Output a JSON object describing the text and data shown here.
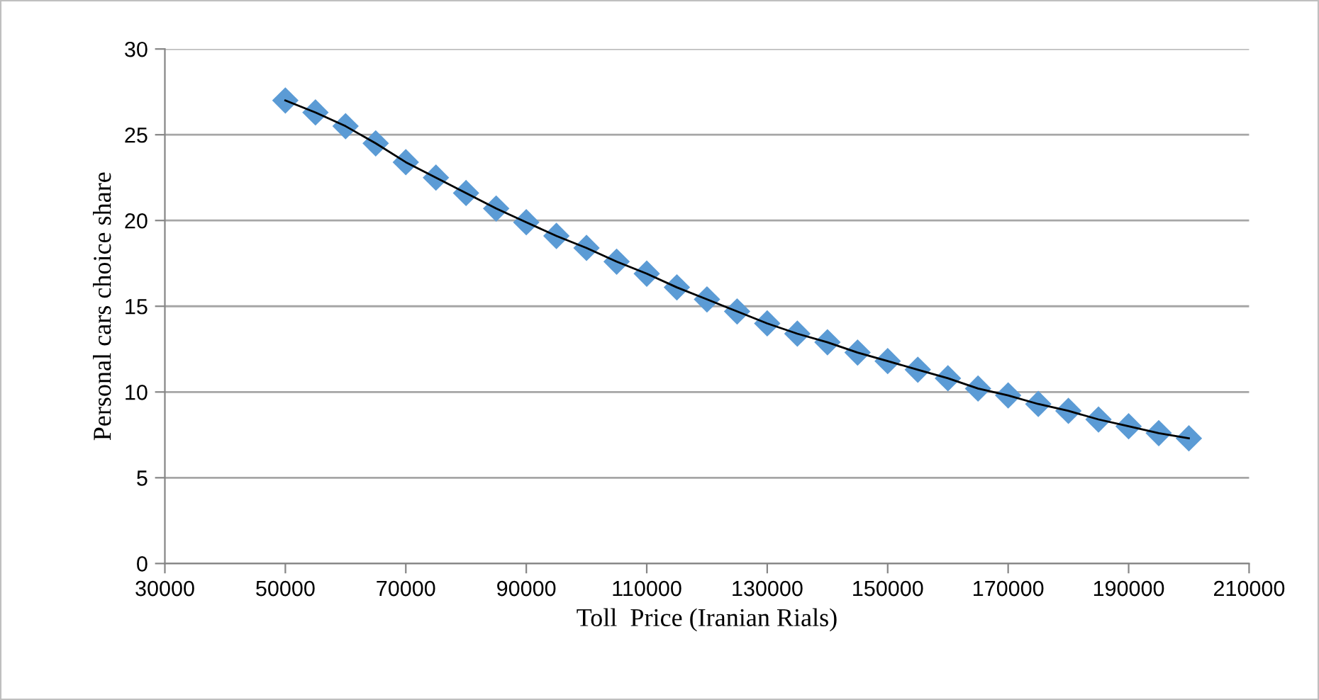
{
  "chart_data": {
    "type": "scatter",
    "xlabel": "Toll  Price (Iranian Rials)",
    "ylabel": "Personal cars choice share",
    "x": [
      50000,
      55000,
      60000,
      65000,
      70000,
      75000,
      80000,
      85000,
      90000,
      95000,
      100000,
      105000,
      110000,
      115000,
      120000,
      125000,
      130000,
      135000,
      140000,
      145000,
      150000,
      155000,
      160000,
      165000,
      170000,
      175000,
      180000,
      185000,
      190000,
      195000,
      200000
    ],
    "series": [
      {
        "color": "#5b9bd5",
        "marker": "diamond",
        "values": [
          27.0,
          26.3,
          25.5,
          24.5,
          23.4,
          22.5,
          21.6,
          20.7,
          19.9,
          19.1,
          18.4,
          17.6,
          16.9,
          16.1,
          15.4,
          14.7,
          14.0,
          13.4,
          12.9,
          12.3,
          11.8,
          11.3,
          10.8,
          10.2,
          9.8,
          9.3,
          8.9,
          8.4,
          8.0,
          7.6,
          7.3
        ]
      },
      {
        "type": "line",
        "color": "#000000",
        "marker": "none",
        "line_style": "solid",
        "values": [
          27.0,
          26.3,
          25.5,
          24.5,
          23.4,
          22.5,
          21.6,
          20.7,
          19.9,
          19.1,
          18.4,
          17.6,
          16.9,
          16.1,
          15.4,
          14.7,
          14.0,
          13.4,
          12.9,
          12.3,
          11.8,
          11.3,
          10.8,
          10.2,
          9.8,
          9.3,
          8.9,
          8.4,
          8.0,
          7.6,
          7.3
        ]
      }
    ],
    "xlim": [
      30000,
      210000
    ],
    "xticks": [
      30000,
      50000,
      70000,
      90000,
      110000,
      130000,
      150000,
      170000,
      190000,
      210000
    ],
    "ylim": [
      0,
      30
    ],
    "yticks": [
      0,
      5,
      10,
      15,
      20,
      25,
      30
    ],
    "grid": "y",
    "legend": false
  }
}
